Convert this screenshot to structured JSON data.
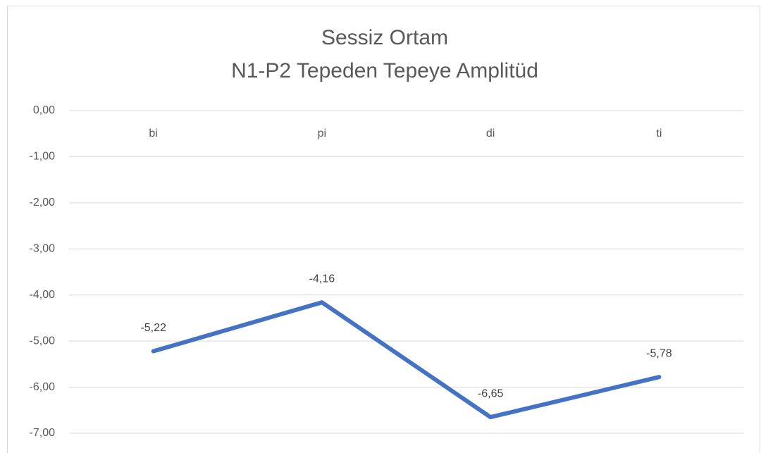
{
  "chart_data": {
    "type": "line",
    "title": [
      "Sessiz Ortam",
      "N1-P2 Tepeden Tepeye Amplitüd"
    ],
    "categories": [
      "bi",
      "pi",
      "di",
      "ti"
    ],
    "series": [
      {
        "name": "N1-P2",
        "color": "#4472c4",
        "values": [
          -5.22,
          -4.16,
          -6.65,
          -5.78
        ],
        "value_labels": [
          "-5,22",
          "-4,16",
          "-6,65",
          "-5,78"
        ]
      }
    ],
    "ylim": [
      -7,
      0
    ],
    "yticks": [
      {
        "value": 0,
        "label": "0,00"
      },
      {
        "value": -1,
        "label": "-1,00"
      },
      {
        "value": -2,
        "label": "-2,00"
      },
      {
        "value": -3,
        "label": "-3,00"
      },
      {
        "value": -4,
        "label": "-4,00"
      },
      {
        "value": -5,
        "label": "-5,00"
      },
      {
        "value": -6,
        "label": "-6,00"
      },
      {
        "value": -7,
        "label": "-7,00"
      }
    ],
    "grid": true
  }
}
